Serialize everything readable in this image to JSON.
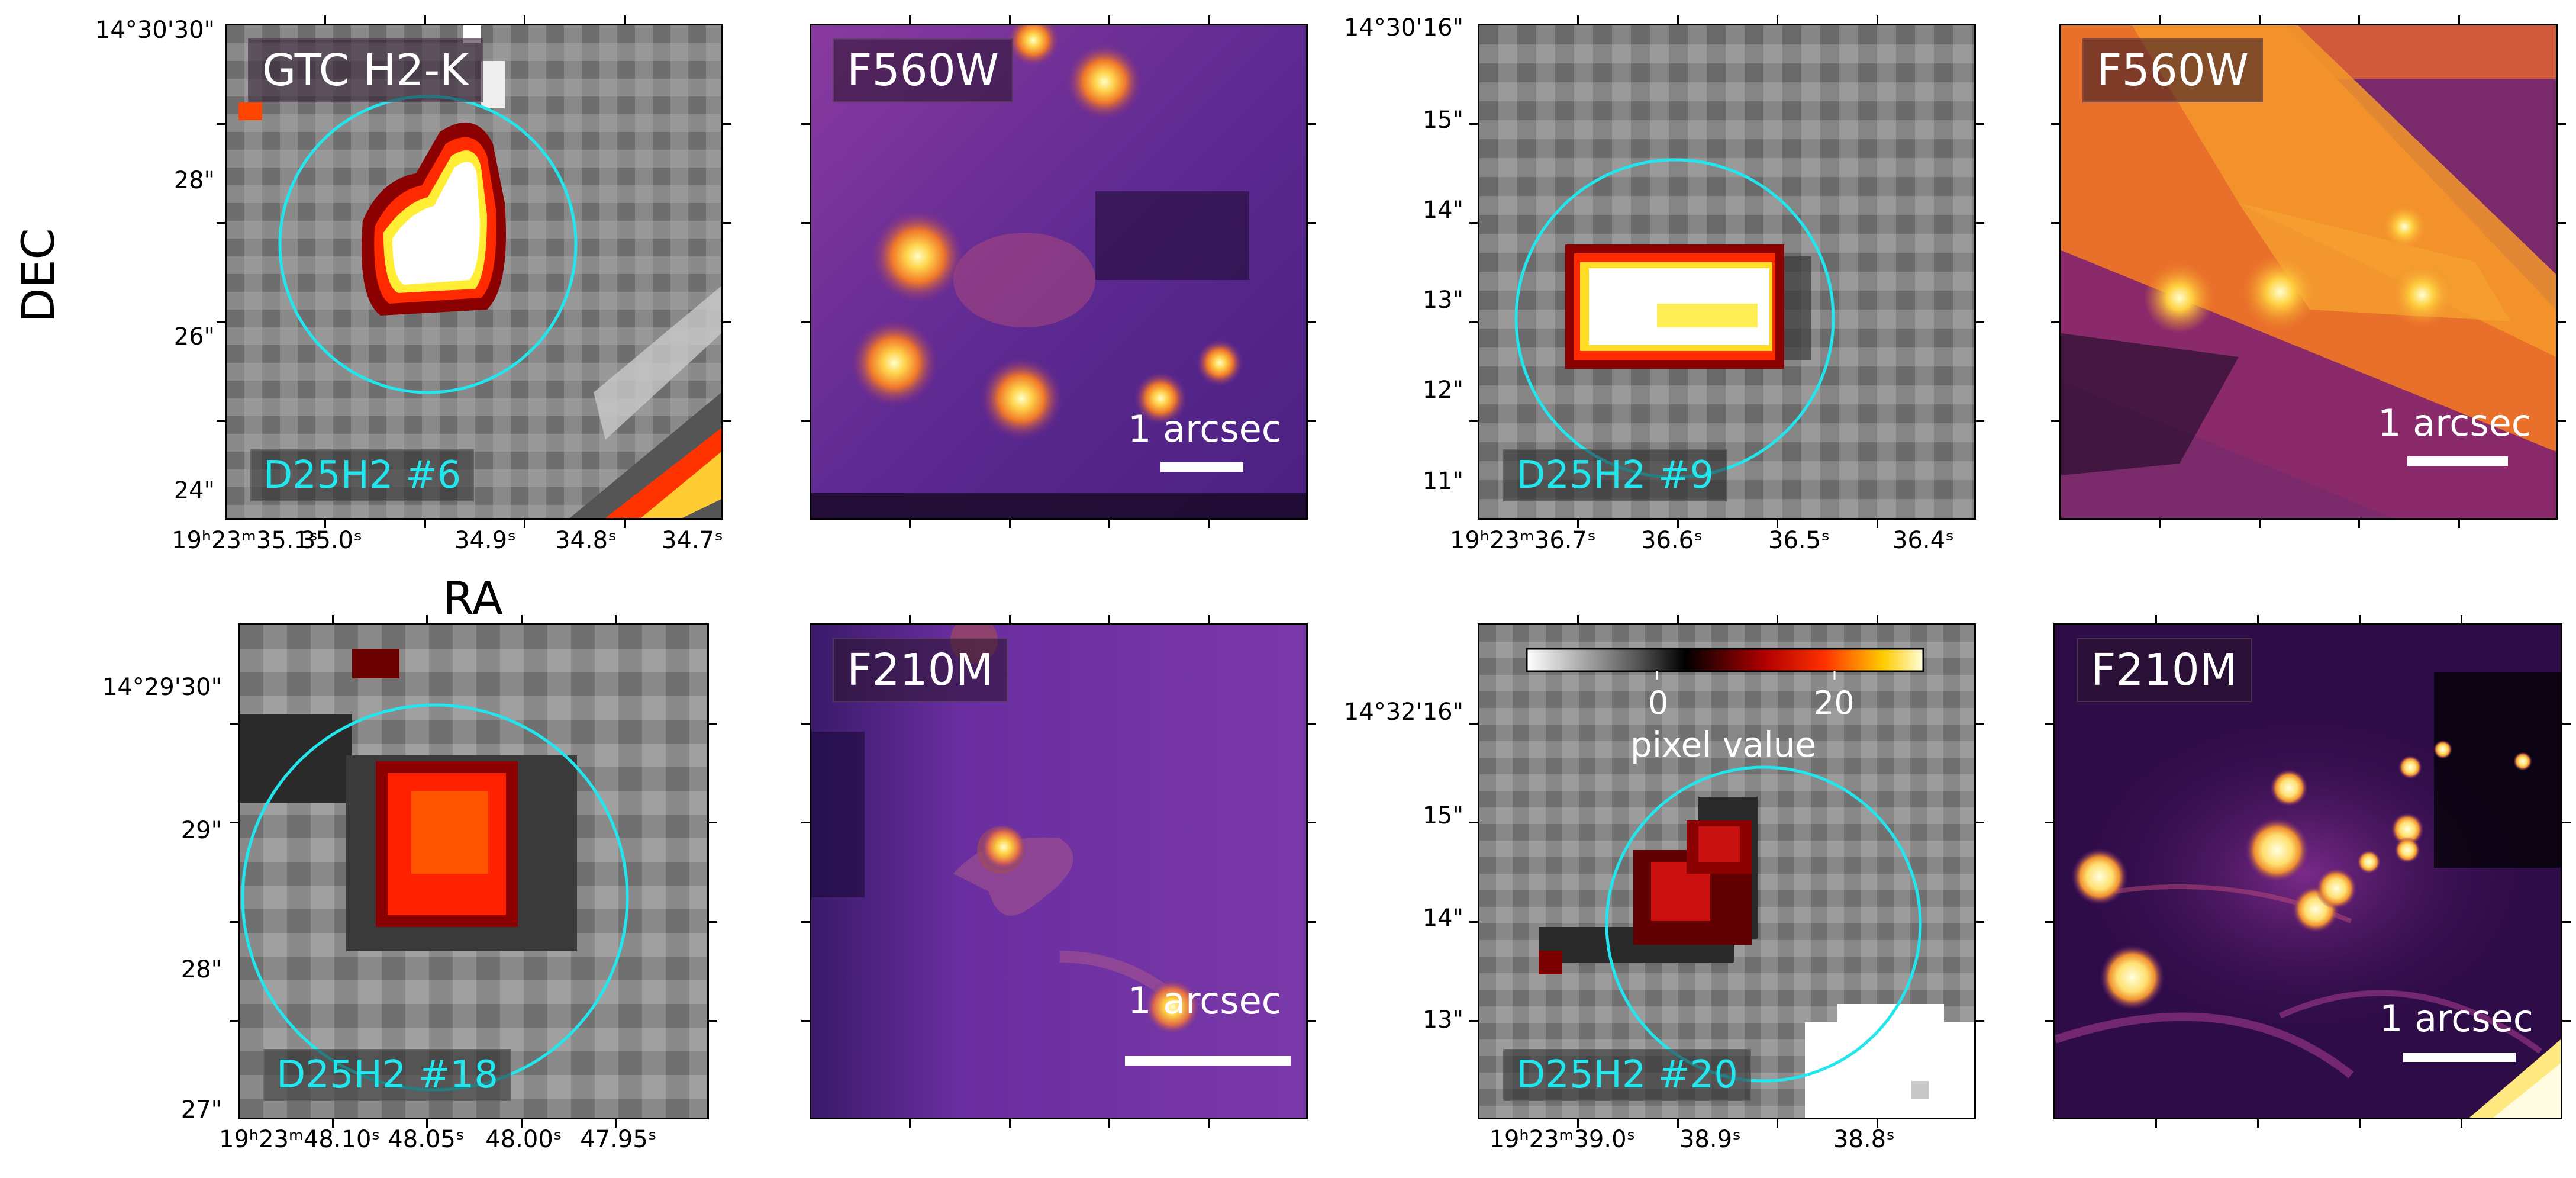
{
  "axis_titles": {
    "dec": "DEC",
    "ra": "RA"
  },
  "panels": [
    {
      "id": "p1",
      "type": "gray",
      "filter": "GTC H2-K",
      "source_id": "D25H2 #6",
      "y_ticks": [
        "14°30'30\"",
        "28\"",
        "26\"",
        "24\""
      ],
      "x_ticks": [
        "19ʰ23ᵐ35.1ˢ",
        "35.0ˢ",
        "34.9ˢ",
        "34.8ˢ",
        "34.7ˢ"
      ]
    },
    {
      "id": "p2",
      "type": "inferno",
      "filter": "F560W",
      "scale_bar": "1 arcsec"
    },
    {
      "id": "p3",
      "type": "gray",
      "source_id": "D25H2 #9",
      "y_ticks": [
        "14°30'16\"",
        "15\"",
        "14\"",
        "13\"",
        "12\"",
        "11\""
      ],
      "x_ticks": [
        "19ʰ23ᵐ36.7ˢ",
        "36.6ˢ",
        "36.5ˢ",
        "36.4ˢ"
      ]
    },
    {
      "id": "p4",
      "type": "inferno",
      "filter": "F560W",
      "scale_bar": "1 arcsec"
    },
    {
      "id": "p5",
      "type": "gray",
      "source_id": "D25H2 #18",
      "y_ticks": [
        "14°29'30\"",
        "29\"",
        "28\"",
        "27\""
      ],
      "x_ticks": [
        "19ʰ23ᵐ48.10ˢ",
        "48.05ˢ",
        "48.00ˢ",
        "47.95ˢ"
      ]
    },
    {
      "id": "p6",
      "type": "inferno",
      "filter": "F210M",
      "scale_bar": "1 arcsec"
    },
    {
      "id": "p7",
      "type": "gray",
      "source_id": "D25H2 #20",
      "y_ticks": [
        "14°32'16\"",
        "15\"",
        "14\"",
        "13\""
      ],
      "x_ticks": [
        "19ʰ23ᵐ39.0ˢ",
        "38.9ˢ",
        "38.8ˢ"
      ],
      "colorbar": {
        "ticks": [
          "0",
          "20"
        ],
        "label": "pixel value"
      }
    },
    {
      "id": "p8",
      "type": "inferno",
      "filter": "F210M",
      "scale_bar": "1 arcsec"
    }
  ],
  "colors": {
    "circle": "#22e6ee",
    "id_text": "#22e6ee"
  }
}
